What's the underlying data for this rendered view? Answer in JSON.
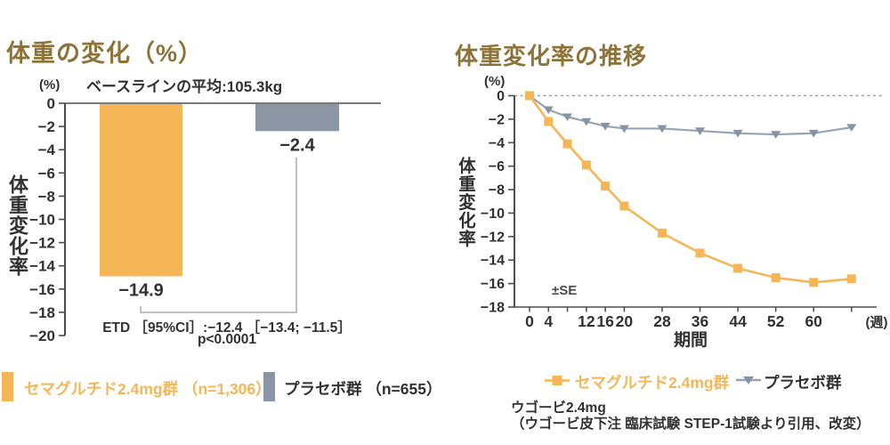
{
  "colors": {
    "accent_orange": "#F4B656",
    "placebo_gray": "#8B95A3",
    "placebo_line": "#9AA3B1",
    "placebo_marker": "#8792A2",
    "title_gold": "#8E7339",
    "text_dark": "#333031",
    "axis": "#4D4D4D",
    "bracket_gray": "#ABABAB",
    "zero_dash_gray": "#9E9E9E"
  },
  "chart_data": [
    {
      "type": "bar",
      "title": "体重の変化（%）",
      "subtitle": "ベースラインの平均:105.3kg",
      "y_unit": "(%)",
      "ylabel": "体重変化率",
      "ylim": [
        0,
        -20
      ],
      "ytick_step": 2,
      "categories": [
        "セマグルチド2.4mg群 （n=1,306）",
        "プラセボ群 （n=655）"
      ],
      "values": [
        -14.9,
        -2.4
      ],
      "value_labels": [
        "−14.9",
        "−2.4"
      ],
      "bar_colors": [
        "#F4B656",
        "#8B95A3"
      ],
      "annotations": [
        "ETD ［95%CI］:−12.4 ［−13.4; −11.5］",
        "p<0.0001"
      ]
    },
    {
      "type": "line",
      "title": "体重変化率の推移",
      "y_unit": "(%)",
      "ylabel": "体重変化率",
      "xlabel": "期間",
      "x_unit": "(週)",
      "note": "±SE",
      "ylim": [
        0,
        -18
      ],
      "ytick_step": 2,
      "x": [
        0,
        4,
        8,
        12,
        16,
        20,
        28,
        36,
        44,
        52,
        60,
        68
      ],
      "xtick_labels": [
        0,
        4,
        12,
        16,
        20,
        28,
        36,
        44,
        52,
        60
      ],
      "zero_line": "dashed",
      "series": [
        {
          "name": "セマグルチド2.4mg群",
          "marker": "square",
          "color": "#F4B656",
          "marker_color": "#F4B656",
          "values": [
            0,
            -2.2,
            -4.1,
            -5.9,
            -7.7,
            -9.4,
            -11.7,
            -13.4,
            -14.7,
            -15.5,
            -15.9,
            -15.6
          ]
        },
        {
          "name": "プラセボ群",
          "marker": "triangle-down",
          "color": "#9AA3B1",
          "marker_color": "#8792A2",
          "values": [
            0,
            -1.2,
            -1.8,
            -2.2,
            -2.6,
            -2.8,
            -2.8,
            -3.0,
            -3.2,
            -3.3,
            -3.2,
            -2.7
          ]
        }
      ]
    }
  ],
  "source_note": {
    "line1": "ウゴービ2.4mg",
    "line2": "（ウゴービ皮下注 臨床試験 STEP-1試験より引用、改変）"
  }
}
